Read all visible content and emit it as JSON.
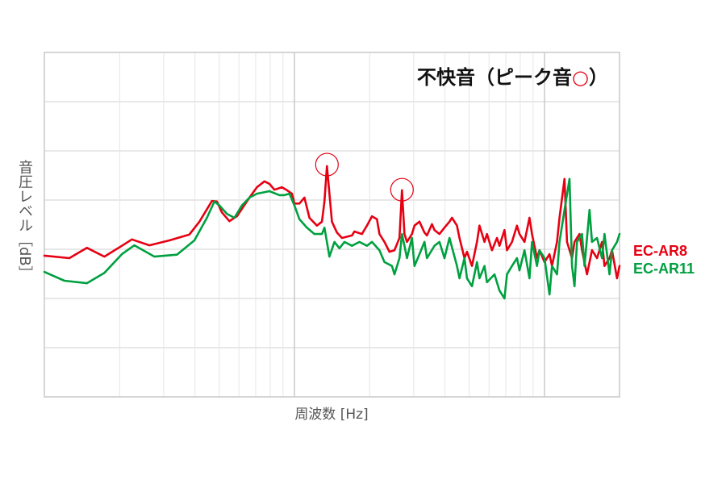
{
  "chart_data": {
    "type": "line",
    "title_parts": [
      "不快音（ピーク音",
      "○",
      "）"
    ],
    "xlabel": "周波数 [Hz]",
    "ylabel": "音圧レベル［dB］",
    "xscale": "log",
    "xlim": [
      0,
      2.3
    ],
    "ylim": [
      0,
      7
    ],
    "grid": true,
    "legend": "right",
    "annotation_color": "#e60012",
    "annotations": [
      {
        "x": 1.13,
        "y": 4.72
      },
      {
        "x": 1.43,
        "y": 4.21
      }
    ],
    "series": [
      {
        "name": "EC-AR8",
        "color": "#e60012",
        "points": [
          [
            0.0,
            2.87
          ],
          [
            0.1,
            2.82
          ],
          [
            0.17,
            3.03
          ],
          [
            0.24,
            2.85
          ],
          [
            0.31,
            3.07
          ],
          [
            0.35,
            3.2
          ],
          [
            0.42,
            3.08
          ],
          [
            0.5,
            3.18
          ],
          [
            0.58,
            3.3
          ],
          [
            0.62,
            3.56
          ],
          [
            0.67,
            3.98
          ],
          [
            0.69,
            3.97
          ],
          [
            0.71,
            3.75
          ],
          [
            0.74,
            3.57
          ],
          [
            0.77,
            3.67
          ],
          [
            0.82,
            4.05
          ],
          [
            0.85,
            4.26
          ],
          [
            0.88,
            4.38
          ],
          [
            0.9,
            4.33
          ],
          [
            0.92,
            4.21
          ],
          [
            0.95,
            4.26
          ],
          [
            0.97,
            4.2
          ],
          [
            0.99,
            4.13
          ],
          [
            1.0,
            3.93
          ],
          [
            1.02,
            3.93
          ],
          [
            1.04,
            4.05
          ],
          [
            1.06,
            3.64
          ],
          [
            1.09,
            3.48
          ],
          [
            1.11,
            3.56
          ],
          [
            1.12,
            3.97
          ],
          [
            1.13,
            4.69
          ],
          [
            1.14,
            4.13
          ],
          [
            1.15,
            3.56
          ],
          [
            1.17,
            3.34
          ],
          [
            1.19,
            3.23
          ],
          [
            1.23,
            3.28
          ],
          [
            1.24,
            3.36
          ],
          [
            1.27,
            3.31
          ],
          [
            1.29,
            3.48
          ],
          [
            1.31,
            3.67
          ],
          [
            1.33,
            3.61
          ],
          [
            1.34,
            3.31
          ],
          [
            1.36,
            3.15
          ],
          [
            1.38,
            2.95
          ],
          [
            1.4,
            2.98
          ],
          [
            1.42,
            3.23
          ],
          [
            1.43,
            4.2
          ],
          [
            1.44,
            3.31
          ],
          [
            1.45,
            3.15
          ],
          [
            1.47,
            3.31
          ],
          [
            1.48,
            3.48
          ],
          [
            1.5,
            3.56
          ],
          [
            1.52,
            3.34
          ],
          [
            1.53,
            3.28
          ],
          [
            1.55,
            3.51
          ],
          [
            1.56,
            3.39
          ],
          [
            1.58,
            3.31
          ],
          [
            1.6,
            3.44
          ],
          [
            1.62,
            3.56
          ],
          [
            1.63,
            3.64
          ],
          [
            1.65,
            3.48
          ],
          [
            1.66,
            3.23
          ],
          [
            1.68,
            2.82
          ],
          [
            1.69,
            2.95
          ],
          [
            1.71,
            2.66
          ],
          [
            1.73,
            3.15
          ],
          [
            1.74,
            3.48
          ],
          [
            1.76,
            3.15
          ],
          [
            1.77,
            3.31
          ],
          [
            1.79,
            2.98
          ],
          [
            1.81,
            3.23
          ],
          [
            1.82,
            3.07
          ],
          [
            1.84,
            3.39
          ],
          [
            1.85,
            2.98
          ],
          [
            1.87,
            3.15
          ],
          [
            1.89,
            3.48
          ],
          [
            1.9,
            3.31
          ],
          [
            1.92,
            3.15
          ],
          [
            1.94,
            3.64
          ],
          [
            1.95,
            3.31
          ],
          [
            1.97,
            2.82
          ],
          [
            1.98,
            2.98
          ],
          [
            2.0,
            2.74
          ],
          [
            2.02,
            2.9
          ],
          [
            2.03,
            2.66
          ],
          [
            2.05,
            3.15
          ],
          [
            2.06,
            3.64
          ],
          [
            2.08,
            4.43
          ],
          [
            2.09,
            3.15
          ],
          [
            2.11,
            2.82
          ],
          [
            2.12,
            3.15
          ],
          [
            2.14,
            3.31
          ],
          [
            2.15,
            2.98
          ],
          [
            2.17,
            2.49
          ],
          [
            2.19,
            2.98
          ],
          [
            2.21,
            2.82
          ],
          [
            2.23,
            3.15
          ],
          [
            2.24,
            2.66
          ],
          [
            2.26,
            2.82
          ],
          [
            2.27,
            2.98
          ],
          [
            2.29,
            2.41
          ],
          [
            2.3,
            2.66
          ]
        ]
      },
      {
        "name": "EC-AR11",
        "color": "#00a040",
        "points": [
          [
            0.0,
            2.54
          ],
          [
            0.08,
            2.36
          ],
          [
            0.17,
            2.31
          ],
          [
            0.24,
            2.52
          ],
          [
            0.31,
            2.9
          ],
          [
            0.36,
            3.08
          ],
          [
            0.44,
            2.85
          ],
          [
            0.53,
            2.89
          ],
          [
            0.6,
            3.18
          ],
          [
            0.65,
            3.64
          ],
          [
            0.68,
            3.97
          ],
          [
            0.7,
            3.89
          ],
          [
            0.73,
            3.72
          ],
          [
            0.76,
            3.64
          ],
          [
            0.79,
            3.89
          ],
          [
            0.82,
            4.05
          ],
          [
            0.85,
            4.13
          ],
          [
            0.9,
            4.18
          ],
          [
            0.94,
            4.1
          ],
          [
            0.96,
            4.1
          ],
          [
            0.98,
            4.13
          ],
          [
            1.0,
            3.89
          ],
          [
            1.02,
            3.61
          ],
          [
            1.05,
            3.44
          ],
          [
            1.08,
            3.31
          ],
          [
            1.11,
            3.31
          ],
          [
            1.12,
            3.44
          ],
          [
            1.14,
            2.85
          ],
          [
            1.16,
            3.15
          ],
          [
            1.18,
            3.02
          ],
          [
            1.2,
            3.15
          ],
          [
            1.23,
            3.07
          ],
          [
            1.26,
            3.15
          ],
          [
            1.29,
            3.07
          ],
          [
            1.31,
            3.15
          ],
          [
            1.34,
            2.98
          ],
          [
            1.36,
            2.74
          ],
          [
            1.39,
            2.66
          ],
          [
            1.4,
            2.49
          ],
          [
            1.42,
            2.82
          ],
          [
            1.43,
            3.31
          ],
          [
            1.44,
            3.07
          ],
          [
            1.45,
            2.82
          ],
          [
            1.47,
            3.23
          ],
          [
            1.48,
            2.66
          ],
          [
            1.5,
            2.9
          ],
          [
            1.52,
            3.15
          ],
          [
            1.53,
            2.82
          ],
          [
            1.56,
            3.07
          ],
          [
            1.58,
            3.15
          ],
          [
            1.6,
            2.82
          ],
          [
            1.62,
            3.23
          ],
          [
            1.65,
            2.66
          ],
          [
            1.66,
            2.41
          ],
          [
            1.68,
            2.82
          ],
          [
            1.69,
            2.41
          ],
          [
            1.71,
            2.25
          ],
          [
            1.73,
            2.74
          ],
          [
            1.74,
            2.41
          ],
          [
            1.76,
            2.66
          ],
          [
            1.77,
            2.33
          ],
          [
            1.8,
            2.49
          ],
          [
            1.82,
            2.16
          ],
          [
            1.84,
            2.0
          ],
          [
            1.85,
            2.49
          ],
          [
            1.87,
            2.66
          ],
          [
            1.89,
            2.82
          ],
          [
            1.9,
            2.57
          ],
          [
            1.92,
            2.98
          ],
          [
            1.94,
            2.41
          ],
          [
            1.95,
            3.15
          ],
          [
            1.97,
            2.66
          ],
          [
            1.98,
            2.98
          ],
          [
            2.0,
            2.82
          ],
          [
            2.02,
            2.08
          ],
          [
            2.03,
            2.66
          ],
          [
            2.05,
            2.49
          ],
          [
            2.06,
            3.15
          ],
          [
            2.08,
            3.8
          ],
          [
            2.1,
            4.43
          ],
          [
            2.11,
            2.66
          ],
          [
            2.12,
            2.25
          ],
          [
            2.13,
            3.15
          ],
          [
            2.15,
            3.31
          ],
          [
            2.16,
            2.66
          ],
          [
            2.18,
            3.8
          ],
          [
            2.19,
            3.15
          ],
          [
            2.21,
            3.23
          ],
          [
            2.23,
            2.82
          ],
          [
            2.24,
            3.31
          ],
          [
            2.26,
            2.49
          ],
          [
            2.27,
            2.98
          ],
          [
            2.29,
            3.15
          ],
          [
            2.3,
            3.31
          ]
        ]
      }
    ]
  }
}
